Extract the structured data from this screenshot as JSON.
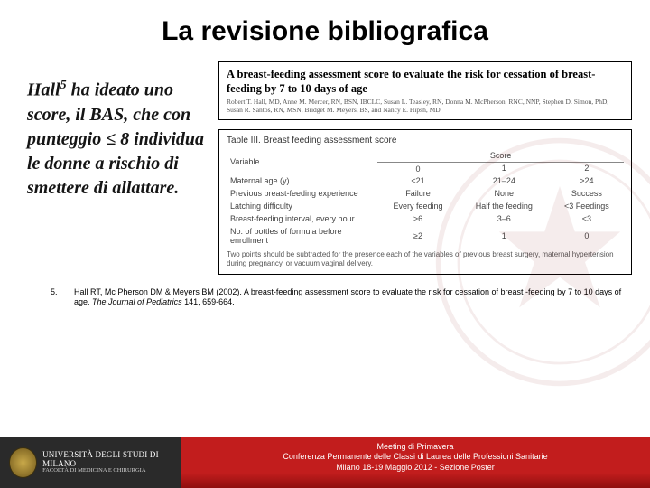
{
  "title": "La revisione bibliografica",
  "body_text": {
    "prefix": "Hall",
    "sup": "5",
    "rest": " ha ideato uno score, il BAS, che con punteggio ≤ 8 individua le donne a rischio di smettere di allattare.",
    "fontsize": 20
  },
  "figure_header": {
    "title": "A breast-feeding assessment score to evaluate the risk for cessation of breast-feeding by 7 to 10 days of age",
    "title_fontsize": 12.5,
    "authors": "Robert T. Hall, MD, Anne M. Mercer, RN, BSN, IBCLC, Susan L. Teasley, RN, Donna M. McPherson, RNC, NNP, Stephen D. Simon, PhD, Susan R. Santos, RN, MSN, Bridget M. Meyers, BS, and Nancy E. Hipsh, MD",
    "authors_fontsize": 7.5
  },
  "table": {
    "caption": "Table III. Breast feeding assessment score",
    "caption_fontsize": 10,
    "header_variable": "Variable",
    "header_score": "Score",
    "score_levels": [
      "0",
      "1",
      "2"
    ],
    "cell_fontsize": 9,
    "rows": [
      {
        "label": "Maternal age (y)",
        "c0": "<21",
        "c1": "21–24",
        "c2": ">24"
      },
      {
        "label": "Previous breast-feeding experience",
        "c0": "Failure",
        "c1": "None",
        "c2": "Success"
      },
      {
        "label": "Latching difficulty",
        "c0": "Every feeding",
        "c1": "Half the feeding",
        "c2": "<3 Feedings"
      },
      {
        "label": "Breast-feeding interval, every hour",
        "c0": ">6",
        "c1": "3–6",
        "c2": "<3"
      },
      {
        "label": "No. of bottles of formula before enrollment",
        "c0": "≥2",
        "c1": "1",
        "c2": "0"
      }
    ],
    "footnote": "Two points should be subtracted for the presence each of the variables of previous breast surgery, maternal hypertension during pregnancy, or vacuum vaginal delivery.",
    "footnote_fontsize": 8
  },
  "reference": {
    "num": "5.",
    "text_pre": "Hall RT, Mc Pherson DM & Meyers BM (2002). A breast-feeding assessment score to evaluate the risk for cessation of breast -feeding by 7 to 10 days of age. ",
    "journal": "The Journal of Pediatrics",
    "text_post": " 141, 659-664.",
    "fontsize": 9
  },
  "footer": {
    "uni": "UNIVERSITÀ DEGLI STUDI DI MILANO",
    "fac": "FACOLTÀ DI MEDICINA E CHIRURGIA",
    "line1": "Meeting di Primavera",
    "line2": "Conferenza Permanente delle Classi di Laurea delle Professioni Sanitarie",
    "line3": "Milano 18-19 Maggio 2012 - Sezione Poster",
    "fontsize": 9,
    "bg_dark": "#2a2a2a",
    "bg_red": "#c21d1d"
  },
  "colors": {
    "background": "#ffffff",
    "text": "#000000",
    "table_text": "#444444",
    "table_border": "#888888"
  }
}
